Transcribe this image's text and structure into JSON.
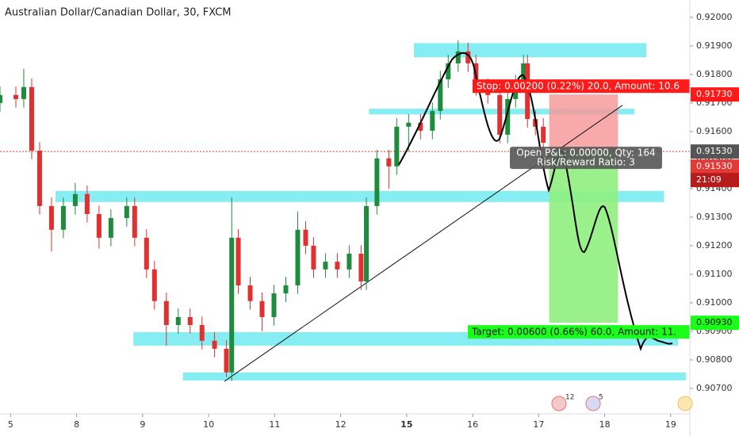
{
  "chart_data": {
    "type": "candlestick",
    "title": "Australian Dollar/Canadian Dollar, 30, FXCM",
    "x": [
      -0.16,
      0.08,
      0.2,
      0.32,
      0.44,
      0.62,
      0.8,
      0.98,
      1.16,
      1.34,
      1.52,
      1.76,
      1.88,
      2.06,
      2.18,
      2.36,
      2.54,
      2.72,
      2.9,
      3.09,
      3.27,
      3.35,
      3.45,
      3.63,
      3.81,
      3.99,
      4.17,
      4.35,
      4.47,
      4.59,
      4.77,
      4.95,
      5.13,
      5.31,
      5.39,
      5.55,
      5.73,
      5.85,
      6.03,
      6.21,
      6.39,
      6.51,
      6.63,
      6.78,
      6.93,
      7.05,
      7.23,
      7.41,
      7.53,
      7.65,
      7.77,
      7.83,
      7.95,
      8.07
    ],
    "open": [
      0.917,
      0.91728,
      0.91714,
      0.91756,
      0.91533,
      0.91339,
      0.91256,
      0.91339,
      0.91381,
      0.91311,
      0.91228,
      0.91297,
      0.91339,
      0.91228,
      0.91117,
      0.91006,
      0.90922,
      0.9095,
      0.90922,
      0.90867,
      0.90839,
      0.90756,
      0.91228,
      0.91061,
      0.91006,
      0.9095,
      0.91033,
      0.91061,
      0.91256,
      0.912,
      0.91117,
      0.91144,
      0.91117,
      0.91172,
      0.91075,
      0.91339,
      0.91506,
      0.91478,
      0.91617,
      0.91631,
      0.91603,
      0.91672,
      0.91783,
      0.91839,
      0.91881,
      0.91839,
      0.91756,
      0.91728,
      0.91589,
      0.91714,
      0.91769,
      0.91839,
      0.91644,
      0.91617
    ],
    "high": [
      0.91758,
      0.91758,
      0.9182,
      0.91786,
      0.91563,
      0.91369,
      0.91369,
      0.9142,
      0.91411,
      0.91341,
      0.91327,
      0.91369,
      0.91369,
      0.91258,
      0.91147,
      0.91036,
      0.9098,
      0.9098,
      0.90952,
      0.90897,
      0.90869,
      0.9137,
      0.91258,
      0.91091,
      0.91036,
      0.91063,
      0.91091,
      0.9132,
      0.91286,
      0.9123,
      0.91174,
      0.91174,
      0.91202,
      0.91202,
      0.91369,
      0.91536,
      0.91536,
      0.91647,
      0.91661,
      0.91661,
      0.91702,
      0.91813,
      0.91869,
      0.9192,
      0.91911,
      0.91869,
      0.91786,
      0.91758,
      0.91744,
      0.91799,
      0.91869,
      0.91869,
      0.91674,
      0.91647
    ],
    "low": [
      0.9167,
      0.91684,
      0.91684,
      0.91503,
      0.91309,
      0.9118,
      0.91226,
      0.91309,
      0.91281,
      0.9119,
      0.91198,
      0.91267,
      0.91198,
      0.91087,
      0.90976,
      0.9085,
      0.90892,
      0.90892,
      0.90837,
      0.90809,
      0.9074,
      0.90726,
      0.91031,
      0.90976,
      0.909,
      0.9092,
      0.91003,
      0.91031,
      0.9117,
      0.91087,
      0.91087,
      0.91087,
      0.91087,
      0.91045,
      0.91045,
      0.91309,
      0.914,
      0.91448,
      0.9153,
      0.91573,
      0.91573,
      0.91642,
      0.91753,
      0.91809,
      0.91809,
      0.91726,
      0.91698,
      0.91559,
      0.91559,
      0.91684,
      0.91739,
      0.91614,
      0.91587,
      0.91531
    ],
    "close": [
      0.91728,
      0.91714,
      0.91756,
      0.91533,
      0.91339,
      0.91256,
      0.91339,
      0.91381,
      0.91311,
      0.91228,
      0.91297,
      0.91339,
      0.91228,
      0.91117,
      0.91006,
      0.90922,
      0.9095,
      0.90922,
      0.90867,
      0.90839,
      0.90756,
      0.91228,
      0.91061,
      0.91006,
      0.9095,
      0.91033,
      0.91061,
      0.91256,
      0.912,
      0.91117,
      0.91144,
      0.91117,
      0.91172,
      0.91075,
      0.91339,
      0.91506,
      0.91478,
      0.91617,
      0.91631,
      0.91603,
      0.91672,
      0.91783,
      0.91839,
      0.91881,
      0.91839,
      0.91756,
      0.91728,
      0.91589,
      0.91714,
      0.91769,
      0.91839,
      0.91644,
      0.91617,
      0.91561
    ],
    "up_color": "#1e8c3c",
    "down_color": "#e0302f",
    "zone_color": "#86eef2",
    "xlim": [
      -0.16,
      10.29
    ],
    "ylim": [
      0.90611,
      0.92061
    ],
    "xticks": [
      {
        "value": 0,
        "label": "5"
      },
      {
        "value": 1,
        "label": "8"
      },
      {
        "value": 2,
        "label": "9"
      },
      {
        "value": 3,
        "label": "10"
      },
      {
        "value": 4,
        "label": "11"
      },
      {
        "value": 5,
        "label": "12"
      },
      {
        "value": 6,
        "label": "15"
      },
      {
        "value": 7,
        "label": "16"
      },
      {
        "value": 8,
        "label": "17"
      },
      {
        "value": 9,
        "label": "18"
      },
      {
        "value": 10,
        "label": "19"
      }
    ],
    "yticks": [
      {
        "value": 0.907,
        "label": "0.90700"
      },
      {
        "value": 0.908,
        "label": "0.90800"
      },
      {
        "value": 0.909,
        "label": "0.90900"
      },
      {
        "value": 0.91,
        "label": "0.91000"
      },
      {
        "value": 0.911,
        "label": "0.91100"
      },
      {
        "value": 0.912,
        "label": "0.91200"
      },
      {
        "value": 0.913,
        "label": "0.91300"
      },
      {
        "value": 0.914,
        "label": "0.91400"
      },
      {
        "value": 0.915,
        "label": "0.91500"
      },
      {
        "value": 0.916,
        "label": "0.91600"
      },
      {
        "value": 0.917,
        "label": "0.91700"
      },
      {
        "value": 0.918,
        "label": "0.91800"
      },
      {
        "value": 0.919,
        "label": "0.91900"
      },
      {
        "value": 0.92,
        "label": "0.92000"
      }
    ],
    "zones": [
      {
        "low": 0.9186,
        "high": 0.9191,
        "x0": 6.11,
        "x1": 9.63
      },
      {
        "low": 0.9166,
        "high": 0.9168,
        "x0": 5.43,
        "x1": 9.45
      },
      {
        "low": 0.91353,
        "high": 0.91392,
        "x0": 0.68,
        "x1": 9.9
      },
      {
        "low": 0.9085,
        "high": 0.90897,
        "x0": 1.86,
        "x1": 10.11
      },
      {
        "low": 0.90728,
        "high": 0.90756,
        "x0": 2.61,
        "x1": 10.23
      }
    ],
    "trendline": {
      "x": [
        3.24,
        9.27
      ],
      "y": [
        0.90725,
        0.91692
      ]
    },
    "position": {
      "entry": 0.9153,
      "stop": 0.9173,
      "target": 0.9093,
      "x0": 8.16,
      "x1": 9.2,
      "entry_label": "0.91530",
      "stop_label": "0.91730",
      "target_label": "0.90930",
      "stop_text": "Stop: 0.00200 (0.22%) 20.0, Amount: 10.6",
      "target_text": "Target: 0.00600 (0.66%) 60.0, Amount: 11.",
      "pnl_text": "Open P&L: 0.00000, Qty: 164",
      "rr_text": "Risk/Reward Ratio: 3"
    },
    "last_price": {
      "value": 0.9153,
      "label": "0.91530",
      "countdown": "21:09"
    },
    "events": [
      "12",
      "5"
    ]
  }
}
